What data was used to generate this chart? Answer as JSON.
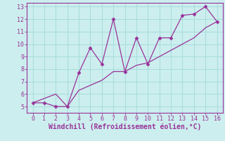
{
  "title": "",
  "xlabel": "Windchill (Refroidissement éolien,°C)",
  "line_color": "#993399",
  "bg_color": "#cceeee",
  "grid_color": "#aadddd",
  "x_data": [
    0,
    1,
    2,
    3,
    4,
    5,
    6,
    7,
    8,
    9,
    10,
    11,
    12,
    13,
    14,
    15,
    16
  ],
  "y_jagged": [
    5.3,
    5.3,
    5.0,
    5.0,
    7.7,
    9.7,
    8.4,
    12.0,
    7.8,
    10.5,
    8.4,
    10.5,
    10.5,
    12.3,
    12.4,
    13.0,
    11.8
  ],
  "y_straight": [
    5.3,
    5.65,
    6.0,
    5.0,
    6.3,
    6.7,
    7.1,
    7.8,
    7.8,
    8.3,
    8.5,
    9.0,
    9.5,
    10.0,
    10.5,
    11.3,
    11.8
  ],
  "xlim_min": -0.5,
  "xlim_max": 16.5,
  "ylim_min": 4.5,
  "ylim_max": 13.3,
  "xticks": [
    0,
    1,
    2,
    3,
    4,
    5,
    6,
    7,
    8,
    9,
    10,
    11,
    12,
    13,
    14,
    15,
    16
  ],
  "yticks": [
    5,
    6,
    7,
    8,
    9,
    10,
    11,
    12,
    13
  ],
  "tick_fontsize": 6,
  "xlabel_fontsize": 7
}
